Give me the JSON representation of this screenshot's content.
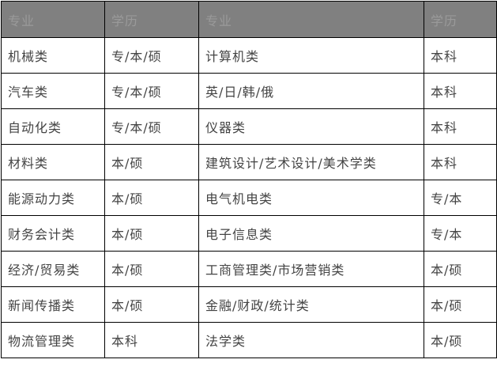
{
  "headers": [
    "专业",
    "学历",
    "专业",
    "学历"
  ],
  "rows": [
    [
      "机械类",
      "专/本/硕",
      "计算机类",
      "本科"
    ],
    [
      "汽车类",
      "专/本/硕",
      "英/日/韩/俄",
      "本科"
    ],
    [
      "自动化类",
      "专/本/硕",
      "仪器类",
      "本科"
    ],
    [
      "材料类",
      "本/硕",
      "建筑设计/艺术设计/美术学类",
      "本科"
    ],
    [
      "能源动力类",
      "本/硕",
      "电气机电类",
      "专/本"
    ],
    [
      "财务会计类",
      "本/硕",
      "电子信息类",
      "专/本"
    ],
    [
      "经济/贸易类",
      "本/硕",
      "工商管理类/市场营销类",
      "本/硕"
    ],
    [
      "新闻传播类",
      "本/硕",
      "金融/财政/统计类",
      "本/硕"
    ],
    [
      "物流管理类",
      "本科",
      "法学类",
      "本/硕"
    ]
  ]
}
